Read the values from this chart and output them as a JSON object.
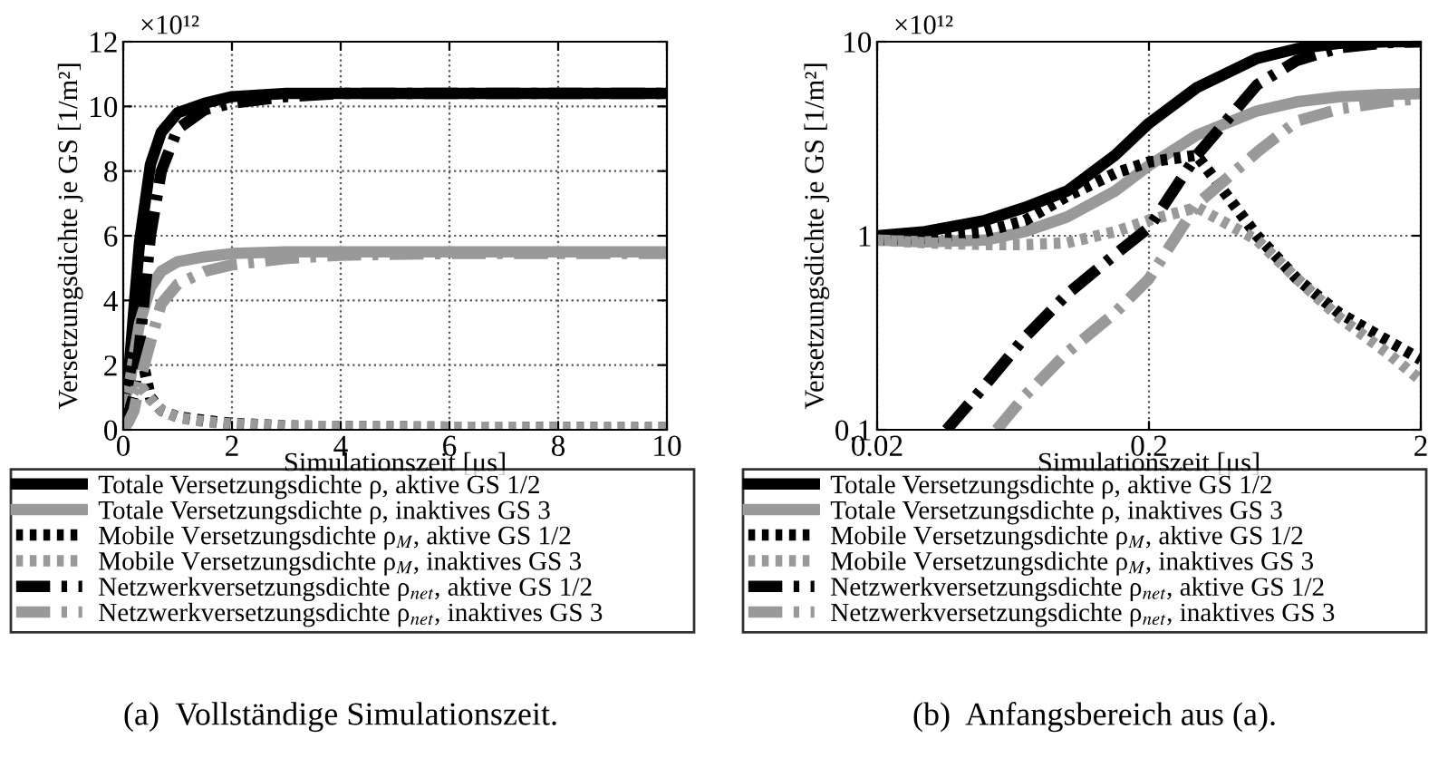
{
  "chart_data": [
    {
      "type": "line",
      "xlabel": "Simulationszeit [μs]",
      "ylabel": "Versetzungsdichte je GS [1/m²]",
      "x": [
        0,
        0.1,
        0.2,
        0.3,
        0.5,
        0.7,
        1,
        1.5,
        2,
        3,
        4,
        6,
        8,
        10
      ],
      "xlim": [
        0,
        10
      ],
      "xticks": [
        0,
        2,
        4,
        6,
        8,
        10
      ],
      "ylim": [
        0,
        12
      ],
      "yticks": [
        0,
        2,
        4,
        6,
        8,
        10,
        12
      ],
      "grid": true,
      "legend": "bottom",
      "series": [
        {
          "name": "Totale Versetzungsdichte ρ, aktive GS 1/2",
          "color": "#000000",
          "line_style": "solid",
          "values": [
            1.0,
            1.7,
            3.8,
            5.8,
            8.2,
            9.2,
            9.8,
            10.1,
            10.3,
            10.4,
            10.4,
            10.4,
            10.4,
            10.4
          ]
        },
        {
          "name": "Totale Versetzungsdichte ρ, inaktives GS 3",
          "color": "#999999",
          "line_style": "solid",
          "values": [
            0.95,
            1.25,
            2.3,
            3.3,
            4.4,
            4.9,
            5.2,
            5.35,
            5.45,
            5.5,
            5.5,
            5.5,
            5.5,
            5.5
          ]
        },
        {
          "name": "Mobile Versetzungsdichte ρ$_{M}$, aktive GS 1/2",
          "color": "#000000",
          "line_style": "dotted",
          "values": [
            0.95,
            1.6,
            2.4,
            2.6,
            1.0,
            0.6,
            0.4,
            0.29,
            0.2,
            0.12,
            0.1,
            0.08,
            0.07,
            0.06
          ]
        },
        {
          "name": "Mobile Versetzungsdichte ρ$_{M}$, inaktives GS 3",
          "color": "#999999",
          "line_style": "dotted",
          "values": [
            0.95,
            0.92,
            1.2,
            1.4,
            0.95,
            0.6,
            0.38,
            0.25,
            0.18,
            0.12,
            0.1,
            0.08,
            0.07,
            0.06
          ]
        },
        {
          "name": "Netzwerkversetzungsdichte ρ$_{net}$, aktive GS 1/2",
          "color": "#000000",
          "line_style": "dashdot",
          "values": [
            0.0,
            0.5,
            1.1,
            2.6,
            6.0,
            8.0,
            9.3,
            9.9,
            10.1,
            10.3,
            10.4,
            10.4,
            10.4,
            10.4
          ]
        },
        {
          "name": "Netzwerkversetzungsdichte ρ$_{net}$, inaktives GS 3",
          "color": "#999999",
          "line_style": "dashdot",
          "values": [
            0.0,
            0.25,
            0.6,
            1.45,
            2.7,
            3.9,
            4.5,
            4.9,
            5.1,
            5.3,
            5.4,
            5.45,
            5.45,
            5.45
          ]
        }
      ],
      "annotations": [
        "×10¹²",
        "(a)  Vollständige Simulationszeit."
      ]
    },
    {
      "type": "line",
      "xlabel": "Simulationszeit [μs]",
      "ylabel": "Versetzungsdichte je GS [1/m²]",
      "log": "xy",
      "x": [
        0.02,
        0.03,
        0.05,
        0.07,
        0.1,
        0.15,
        0.2,
        0.3,
        0.5,
        0.7,
        1,
        1.5,
        2
      ],
      "xlim": [
        0.02,
        2
      ],
      "xticks": [
        0.02,
        0.2,
        2
      ],
      "ylim": [
        0.1,
        10
      ],
      "yticks": [
        0.1,
        1,
        10
      ],
      "grid": true,
      "legend": "bottom",
      "series": [
        {
          "name": "Totale Versetzungsdichte ρ, aktive GS 1/2",
          "color": "#000000",
          "line_style": "solid",
          "values": [
            1.0,
            1.05,
            1.2,
            1.4,
            1.7,
            2.6,
            3.8,
            5.8,
            8.2,
            9.2,
            9.8,
            10.0,
            10.0
          ]
        },
        {
          "name": "Totale Versetzungsdichte ρ, inaktives GS 3",
          "color": "#999999",
          "line_style": "solid",
          "values": [
            0.95,
            0.93,
            0.95,
            1.05,
            1.25,
            1.7,
            2.3,
            3.3,
            4.4,
            4.9,
            5.2,
            5.35,
            5.4
          ]
        },
        {
          "name": "Mobile Versetzungsdichte ρ$_{M}$, aktive GS 1/2",
          "color": "#000000",
          "line_style": "dotted",
          "values": [
            0.95,
            0.97,
            1.05,
            1.2,
            1.6,
            2.1,
            2.4,
            2.6,
            1.0,
            0.6,
            0.4,
            0.29,
            0.23
          ]
        },
        {
          "name": "Mobile Versetzungsdichte ρ$_{M}$, inaktives GS 3",
          "color": "#999999",
          "line_style": "dotted",
          "values": [
            0.95,
            0.92,
            0.9,
            0.9,
            0.92,
            1.05,
            1.2,
            1.4,
            0.95,
            0.6,
            0.38,
            0.25,
            0.18
          ]
        },
        {
          "name": "Netzwerkversetzungsdichte ρ$_{net}$, aktive GS 1/2",
          "color": "#000000",
          "line_style": "dashdot",
          "x": [
            0.036,
            0.05,
            0.07,
            0.1,
            0.15,
            0.2,
            0.3,
            0.5,
            0.7,
            1,
            1.5,
            2
          ],
          "values": [
            0.1,
            0.17,
            0.3,
            0.5,
            0.8,
            1.1,
            2.6,
            6.0,
            8.0,
            9.3,
            9.9,
            10.0
          ]
        },
        {
          "name": "Netzwerkversetzungsdichte ρ$_{net}$, inaktives GS 3",
          "color": "#999999",
          "line_style": "dashdot",
          "x": [
            0.055,
            0.07,
            0.1,
            0.15,
            0.2,
            0.3,
            0.5,
            0.7,
            1,
            1.5,
            2
          ],
          "values": [
            0.1,
            0.15,
            0.25,
            0.4,
            0.6,
            1.45,
            2.7,
            3.9,
            4.5,
            4.9,
            5.1
          ]
        }
      ],
      "annotations": [
        "×10¹²",
        "(b)  Anfangsbereich aus (a)."
      ]
    }
  ]
}
